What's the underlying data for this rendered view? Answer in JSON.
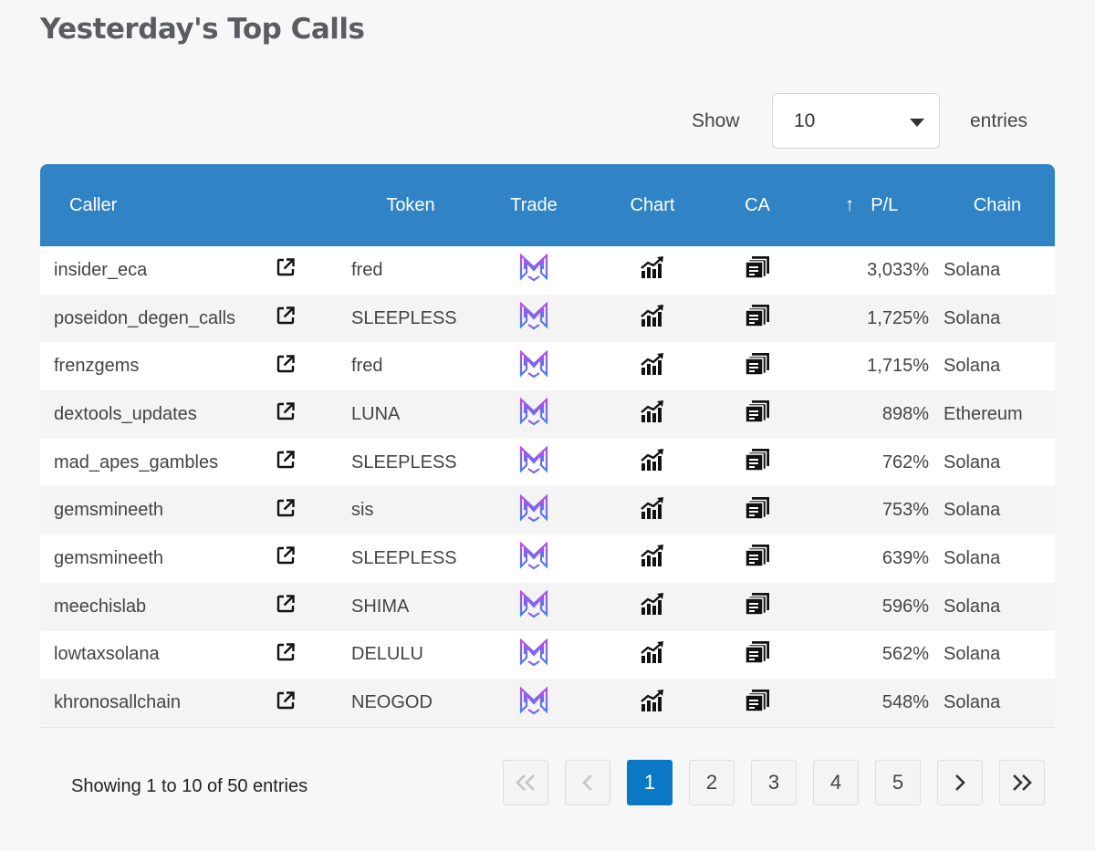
{
  "title": "Yesterday's Top Calls",
  "length_control": {
    "show_label": "Show",
    "value": "10",
    "entries_label": "entries"
  },
  "columns": {
    "caller": "Caller",
    "token": "Token",
    "trade": "Trade",
    "chart": "Chart",
    "ca": "CA",
    "pl_sort_icon": "↑",
    "pl": "P/L",
    "chain": "Chain"
  },
  "rows": [
    {
      "caller": "insider_eca",
      "token": "fred",
      "pl": "3,033%",
      "chain": "Solana"
    },
    {
      "caller": "poseidon_degen_calls",
      "token": "SLEEPLESS",
      "pl": "1,725%",
      "chain": "Solana"
    },
    {
      "caller": "frenzgems",
      "token": "fred",
      "pl": "1,715%",
      "chain": "Solana"
    },
    {
      "caller": "dextools_updates",
      "token": "LUNA",
      "pl": "898%",
      "chain": "Ethereum"
    },
    {
      "caller": "mad_apes_gambles",
      "token": "SLEEPLESS",
      "pl": "762%",
      "chain": "Solana"
    },
    {
      "caller": "gemsmineeth",
      "token": "sis",
      "pl": "753%",
      "chain": "Solana"
    },
    {
      "caller": "gemsmineeth",
      "token": "SLEEPLESS",
      "pl": "639%",
      "chain": "Solana"
    },
    {
      "caller": "meechislab",
      "token": "SHIMA",
      "pl": "596%",
      "chain": "Solana"
    },
    {
      "caller": "lowtaxsolana",
      "token": "DELULU",
      "pl": "562%",
      "chain": "Solana"
    },
    {
      "caller": "khronosallchain",
      "token": "NEOGOD",
      "pl": "548%",
      "chain": "Solana"
    }
  ],
  "icons": {
    "external": "external-link-icon",
    "trade": "trade-logo-icon",
    "chart": "chart-trend-icon",
    "ca": "copy-address-icon"
  },
  "colors": {
    "header": "#3083c5",
    "active_page": "#0a78c4",
    "trade_logo_top": "#b44ee8",
    "trade_logo_bottom": "#4a7df0"
  },
  "info": "Showing 1 to 10 of 50 entries",
  "pagination": {
    "pages": [
      "1",
      "2",
      "3",
      "4",
      "5"
    ],
    "current": "1"
  }
}
